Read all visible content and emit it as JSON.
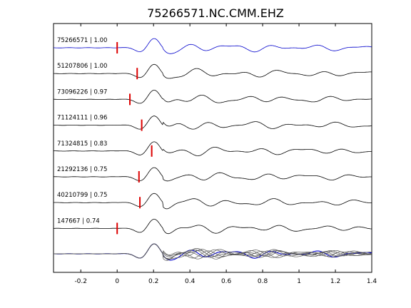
{
  "chart_data": {
    "type": "line",
    "title": "75266571.NC.CMM.EHZ",
    "xlabel": "",
    "ylabel": "",
    "xlim": [
      -0.35,
      1.4
    ],
    "xticks": [
      "-0.2",
      "0",
      "0.2",
      "0.4",
      "0.6",
      "0.8",
      "1",
      "1.2",
      "1.4"
    ],
    "xtick_values": [
      -0.2,
      0,
      0.2,
      0.4,
      0.6,
      0.8,
      1.0,
      1.2,
      1.4
    ],
    "grid": false,
    "reference_color": "#0000cc",
    "trace_color": "#000000",
    "pick_color": "#dd0000",
    "traces": [
      {
        "label": "75266571 | 1.00",
        "pick": 0.0,
        "reference": true,
        "seed": 1
      },
      {
        "label": "51207806 | 1.00",
        "pick": 0.11,
        "reference": false,
        "seed": 2
      },
      {
        "label": "73096226 | 0.97",
        "pick": 0.07,
        "reference": false,
        "seed": 3
      },
      {
        "label": "71124111 | 0.96",
        "pick": 0.135,
        "reference": false,
        "seed": 4
      },
      {
        "label": "71324815 | 0.83",
        "pick": 0.19,
        "reference": false,
        "seed": 5
      },
      {
        "label": "21292136 | 0.75",
        "pick": 0.12,
        "reference": false,
        "seed": 6
      },
      {
        "label": "40210799 | 0.75",
        "pick": 0.125,
        "reference": false,
        "seed": 7
      },
      {
        "label": "147667 | 0.74",
        "pick": 0.0,
        "reference": false,
        "seed": 8
      }
    ]
  }
}
